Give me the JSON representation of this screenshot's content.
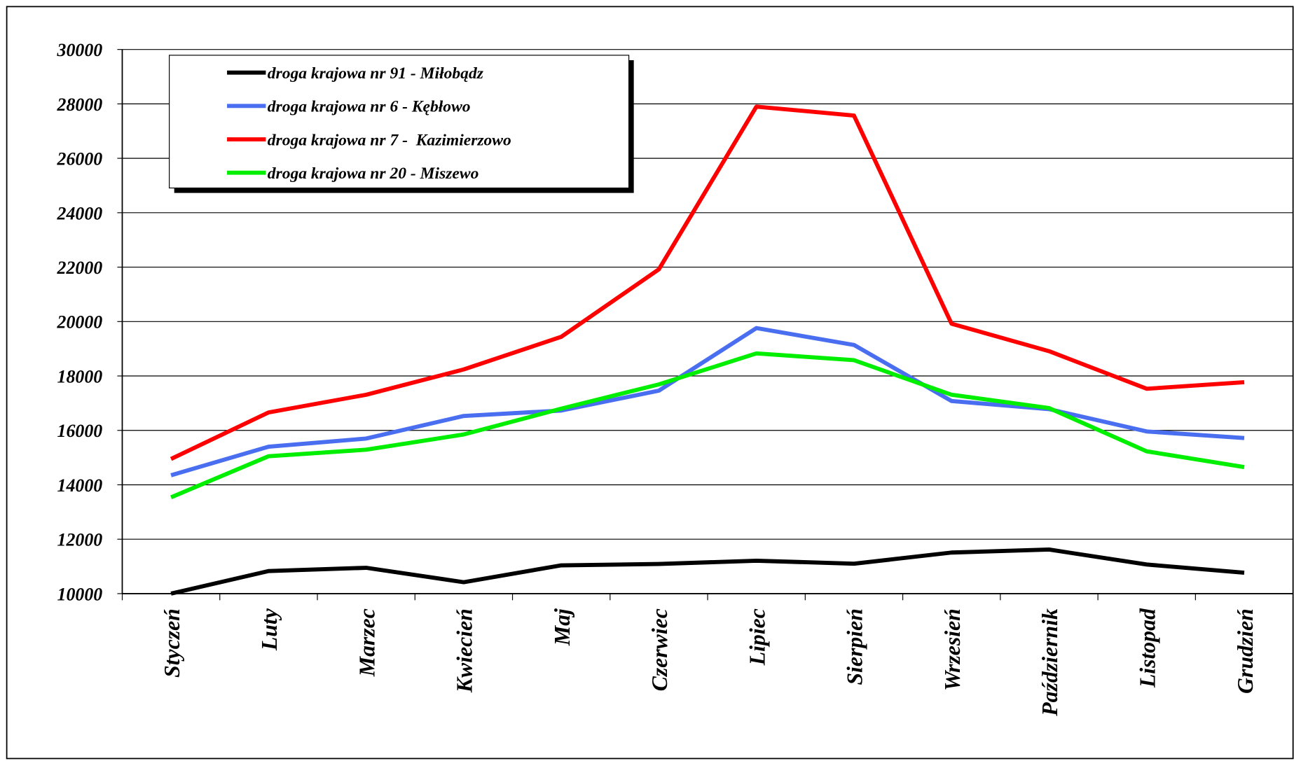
{
  "chart_data": {
    "type": "line",
    "categories": [
      "Styczeń",
      "Luty",
      "Marzec",
      "Kwiecień",
      "Maj",
      "Czerwiec",
      "Lipiec",
      "Sierpień",
      "Wrzesień",
      "Październik",
      "Listopad",
      "Grudzień"
    ],
    "series": [
      {
        "name": "droga krajowa nr 91 - Miłobądz",
        "color": "#000000",
        "values": [
          10000,
          10830,
          10950,
          10420,
          11040,
          11090,
          11210,
          11100,
          11510,
          11620,
          11070,
          10770
        ]
      },
      {
        "name": "droga krajowa nr 6 - Kębłowo",
        "color": "#4a6ef0",
        "values": [
          14350,
          15400,
          15700,
          16530,
          16730,
          17460,
          19760,
          19140,
          17080,
          16780,
          15960,
          15720
        ]
      },
      {
        "name": "droga krajowa nr 7 -  Kazimierzowo",
        "color": "#ff0000",
        "values": [
          14950,
          16660,
          17310,
          18240,
          19440,
          21920,
          27900,
          27570,
          19920,
          18910,
          17530,
          17770
        ]
      },
      {
        "name": "droga krajowa nr 20 - Miszewo",
        "color": "#00ee00",
        "values": [
          13540,
          15050,
          15290,
          15850,
          16800,
          17690,
          18830,
          18580,
          17310,
          16820,
          15230,
          14650
        ]
      }
    ],
    "ylim": [
      10000,
      30000
    ],
    "yticks": [
      10000,
      12000,
      14000,
      16000,
      18000,
      20000,
      22000,
      24000,
      26000,
      28000,
      30000
    ],
    "grid": true
  }
}
